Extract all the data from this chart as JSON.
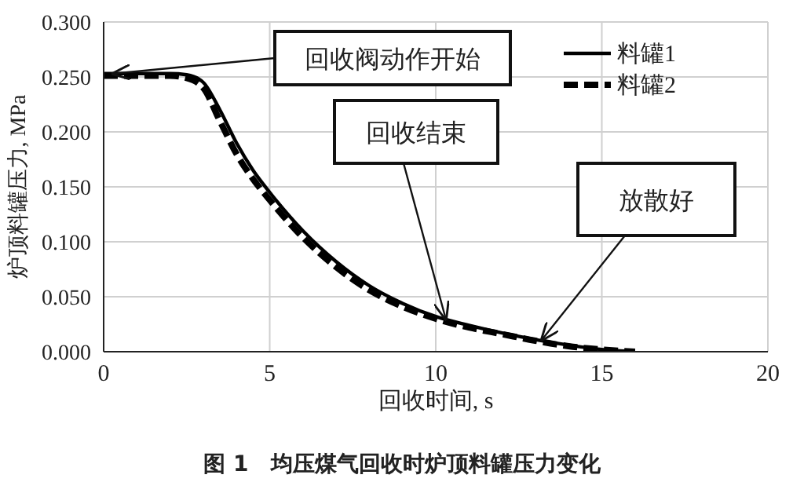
{
  "chart_data": {
    "type": "line",
    "title": "图 1　均压煤气回收时炉顶料罐压力变化",
    "xlabel": "回收时间, s",
    "ylabel": "炉顶料罐压力, MPa",
    "xlim": [
      0,
      20
    ],
    "xticks": [
      0,
      5,
      10,
      15,
      20
    ],
    "ylim": [
      0,
      0.3
    ],
    "yticks": [
      {
        "value": 0,
        "label": "0.000"
      },
      {
        "value": 0.05,
        "label": "0.050"
      },
      {
        "value": 0.1,
        "label": "0.100"
      },
      {
        "value": 0.15,
        "label": "0.150"
      },
      {
        "value": 0.2,
        "label": "0.200"
      },
      {
        "value": 0.25,
        "label": "0.250"
      },
      {
        "value": 0.3,
        "label": "0.300"
      }
    ],
    "grid": true,
    "legend": "top right",
    "marker": "none",
    "x": [
      0,
      1,
      2,
      2.5,
      3,
      3.5,
      4,
      4.5,
      5,
      6,
      7,
      8,
      9,
      10,
      11,
      12,
      13,
      14,
      15,
      16
    ],
    "series": [
      {
        "name": "料罐1",
        "color": "#000000",
        "line_style": "solid",
        "values": [
          0.253,
          0.253,
          0.253,
          0.252,
          0.245,
          0.22,
          0.19,
          0.165,
          0.145,
          0.11,
          0.082,
          0.06,
          0.044,
          0.032,
          0.024,
          0.017,
          0.011,
          0.006,
          0.002,
          0
        ]
      },
      {
        "name": "料罐2",
        "color": "#000000",
        "line_style": "dashed",
        "values": [
          0.251,
          0.251,
          0.251,
          0.249,
          0.24,
          0.21,
          0.18,
          0.157,
          0.138,
          0.104,
          0.077,
          0.056,
          0.041,
          0.03,
          0.022,
          0.016,
          0.01,
          0.005,
          0.002,
          0
        ]
      }
    ],
    "annotations": [
      {
        "text": "回收阀动作开始",
        "x": 0.3,
        "y": 0.253
      },
      {
        "text": "回收结束",
        "x": 10.3,
        "y": 0.03
      },
      {
        "text": "放散好",
        "x": 13.2,
        "y": 0.011
      }
    ]
  }
}
